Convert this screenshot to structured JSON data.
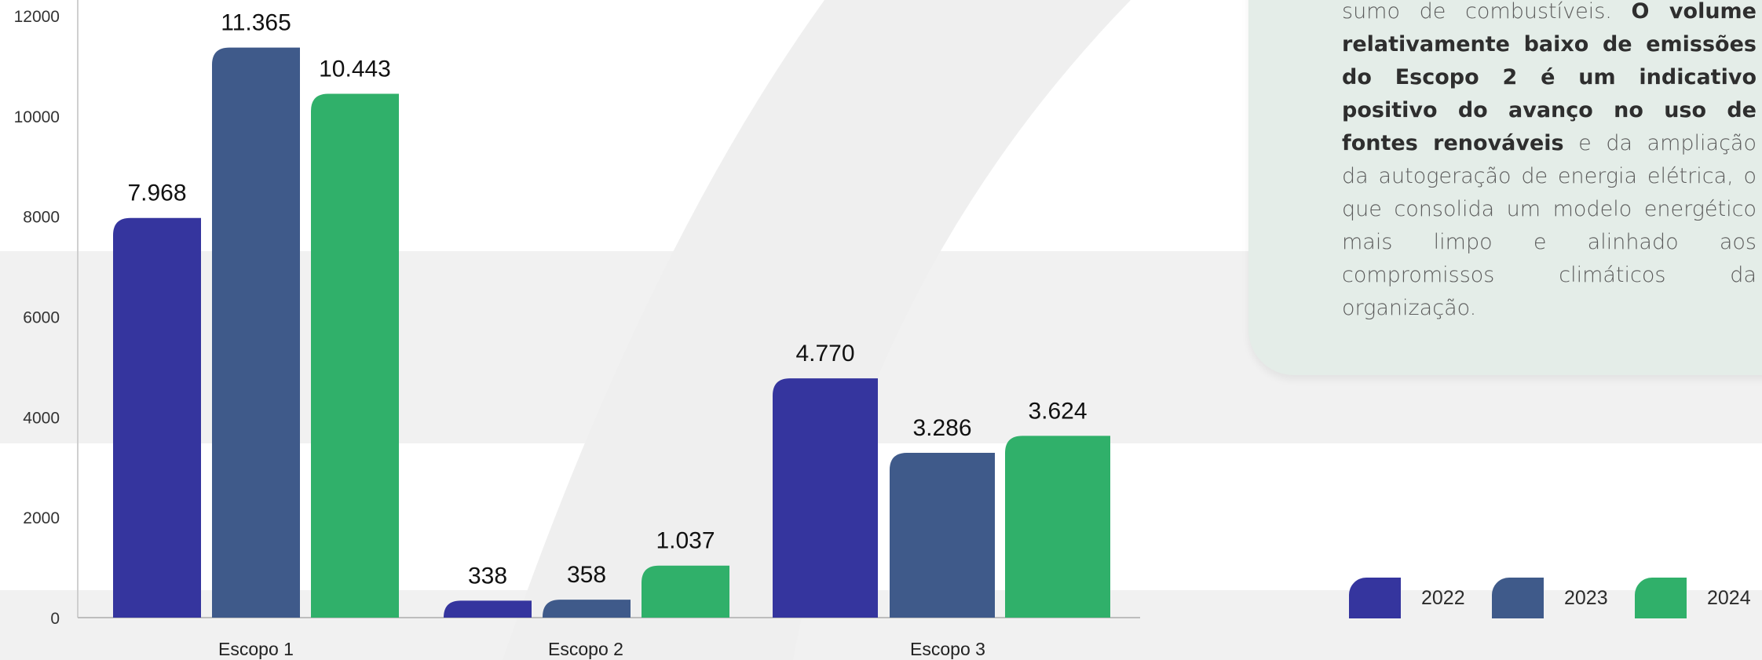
{
  "chart_data": {
    "type": "bar",
    "categories": [
      "Escopo 1",
      "Escopo 2",
      "Escopo 3"
    ],
    "series": [
      {
        "name": "2022",
        "values": [
          7968,
          338,
          4770
        ],
        "labels": [
          "7.968",
          "338",
          "4.770"
        ]
      },
      {
        "name": "2023",
        "values": [
          11365,
          358,
          3286
        ],
        "labels": [
          "11.365",
          "358",
          "3.286"
        ]
      },
      {
        "name": "2024",
        "values": [
          10443,
          1037,
          3624
        ],
        "labels": [
          "10.443",
          "1.037",
          "3.624"
        ]
      }
    ],
    "y_ticks": [
      "0",
      "2000",
      "4000",
      "6000",
      "8000",
      "10000",
      "12000"
    ],
    "ylim": [
      0,
      12000
    ],
    "grid": false,
    "legend_position": "bottom-right",
    "colors": {
      "2022": "#35359e",
      "2023": "#3f5a8a",
      "2024": "#30b06a"
    }
  },
  "panel": {
    "line1": "por cau... sumo de combustíveis.",
    "seg_plain_1": "sumo de combustíveis. ",
    "seg_bold": "O volume relativamente baixo de emissões do Escopo 2 é um indicativo positivo do avanço no uso de fontes renováveis",
    "seg_plain_2": " e da ampliação da autogeração de energia elétrica, o que consolida um modelo energético mais limpo e alinhado aos compromissos climáticos da organização."
  },
  "legend": [
    "2022",
    "2023",
    "2024"
  ]
}
